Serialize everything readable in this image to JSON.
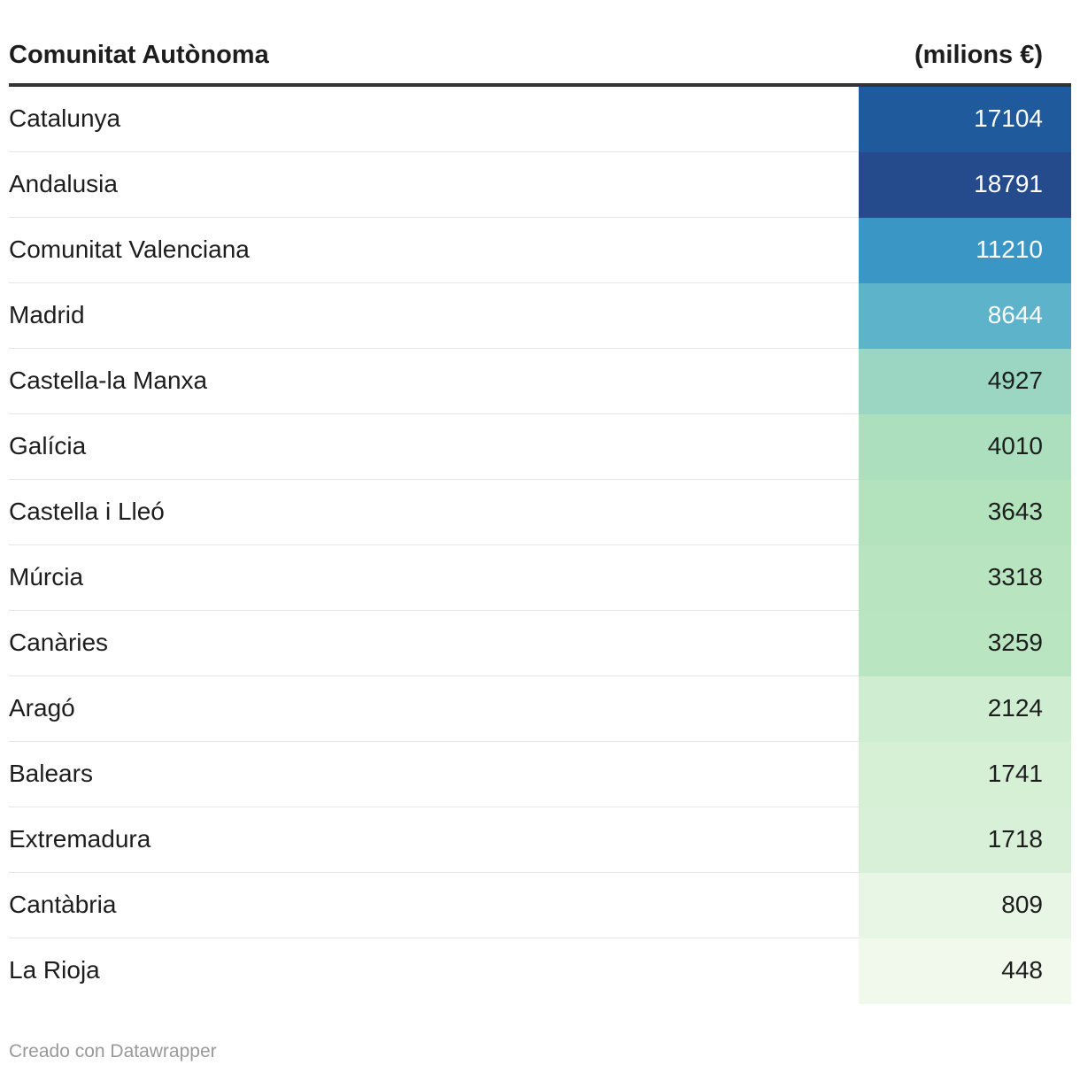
{
  "chart_data": {
    "type": "table",
    "columns": [
      "Comunitat Autònoma",
      "(milions €)"
    ],
    "rows": [
      {
        "name": "Catalunya",
        "value": 17104,
        "bg": "#1f5b9c",
        "fg": "#ffffff"
      },
      {
        "name": "Andalusia",
        "value": 18791,
        "bg": "#254b8c",
        "fg": "#ffffff"
      },
      {
        "name": "Comunitat Valenciana",
        "value": 11210,
        "bg": "#3a96c4",
        "fg": "#ffffff"
      },
      {
        "name": "Madrid",
        "value": 8644,
        "bg": "#5cb3ca",
        "fg": "#ffffff"
      },
      {
        "name": "Castella-la Manxa",
        "value": 4927,
        "bg": "#9ad6c2",
        "fg": "#1d1d1d"
      },
      {
        "name": "Galícia",
        "value": 4010,
        "bg": "#acdfbd",
        "fg": "#1d1d1d"
      },
      {
        "name": "Castella i Lleó",
        "value": 3643,
        "bg": "#b3e3bd",
        "fg": "#1d1d1d"
      },
      {
        "name": "Múrcia",
        "value": 3318,
        "bg": "#b8e5bf",
        "fg": "#1d1d1d"
      },
      {
        "name": "Canàries",
        "value": 3259,
        "bg": "#b9e6c0",
        "fg": "#1d1d1d"
      },
      {
        "name": "Aragó",
        "value": 2124,
        "bg": "#cfedd1",
        "fg": "#1d1d1d"
      },
      {
        "name": "Balears",
        "value": 1741,
        "bg": "#d6f0d6",
        "fg": "#1d1d1d"
      },
      {
        "name": "Extremadura",
        "value": 1718,
        "bg": "#d7f0d7",
        "fg": "#1d1d1d"
      },
      {
        "name": "Cantàbria",
        "value": 809,
        "bg": "#e8f6e5",
        "fg": "#1d1d1d"
      },
      {
        "name": "La Rioja",
        "value": 448,
        "bg": "#f0f9eb",
        "fg": "#1d1d1d"
      }
    ]
  },
  "footer": {
    "credit": "Creado con Datawrapper"
  }
}
